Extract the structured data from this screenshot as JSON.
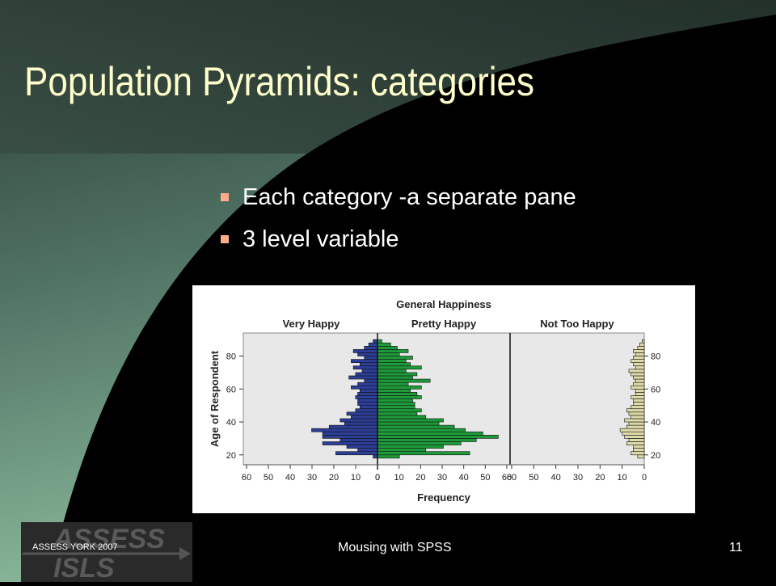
{
  "slide": {
    "title": "Population Pyramids: categories",
    "bullets": [
      "Each category -a separate pane",
      "3 level variable"
    ],
    "footer_left": "ASSESS YORK 2007",
    "footer_center": "Mousing with SPSS",
    "page_number": "11",
    "logo_text": [
      "ASSESS",
      "ISLS"
    ]
  },
  "colors": {
    "title": "#ffffcc",
    "bullet": "#ffaa88",
    "very_happy": "#2c3e96",
    "pretty_happy": "#1f9a3a",
    "not_too_happy": "#ded9a8",
    "pane_bg": "#e8e8e8"
  },
  "chart_data": {
    "type": "bar",
    "orientation": "horizontal",
    "title": "General Happiness",
    "xlabel": "Frequency",
    "ylabel": "Age of Respondent",
    "panes": [
      "Very Happy",
      "Pretty Happy",
      "Not Too Happy"
    ],
    "pane_x_ticks": [
      [
        "60",
        "50",
        "40",
        "30",
        "20",
        "10",
        "0"
      ],
      [
        "0",
        "10",
        "20",
        "30",
        "40",
        "50",
        "60"
      ],
      [
        "60",
        "50",
        "40",
        "30",
        "20",
        "10",
        "0"
      ]
    ],
    "y_ticks": [
      "20",
      "40",
      "60",
      "80"
    ],
    "ylim": [
      14,
      94
    ],
    "xlim": [
      0,
      60
    ],
    "bin_width": 2,
    "series": [
      {
        "name": "Very Happy",
        "ages": [
          19,
          21,
          23,
          25,
          27,
          29,
          31,
          33,
          35,
          37,
          39,
          41,
          43,
          45,
          47,
          49,
          51,
          53,
          55,
          57,
          59,
          61,
          63,
          65,
          67,
          69,
          71,
          73,
          75,
          77,
          79,
          81,
          83,
          85,
          87,
          89
        ],
        "values": [
          2,
          19,
          9,
          14,
          25,
          17,
          25,
          25,
          30,
          22,
          15,
          17,
          12,
          14,
          10,
          8,
          9,
          9,
          10,
          9,
          8,
          12,
          9,
          6,
          13,
          10,
          7,
          11,
          8,
          12,
          6,
          9,
          11,
          6,
          4,
          2
        ]
      },
      {
        "name": "Pretty Happy",
        "ages": [
          19,
          21,
          23,
          25,
          27,
          29,
          31,
          33,
          35,
          37,
          39,
          41,
          43,
          45,
          47,
          49,
          51,
          53,
          55,
          57,
          59,
          61,
          63,
          65,
          67,
          69,
          71,
          73,
          75,
          77,
          79,
          81,
          83,
          85,
          87,
          89
        ],
        "values": [
          10,
          42,
          22,
          30,
          38,
          45,
          55,
          48,
          40,
          35,
          28,
          30,
          22,
          18,
          20,
          17,
          17,
          16,
          20,
          18,
          15,
          20,
          14,
          24,
          16,
          18,
          13,
          20,
          15,
          13,
          16,
          10,
          14,
          9,
          6,
          2
        ]
      },
      {
        "name": "Not Too Happy",
        "ages": [
          19,
          21,
          23,
          25,
          27,
          29,
          31,
          33,
          35,
          37,
          39,
          41,
          43,
          45,
          47,
          49,
          51,
          53,
          55,
          57,
          59,
          61,
          63,
          65,
          67,
          69,
          71,
          73,
          75,
          77,
          79,
          81,
          83,
          85,
          87,
          89
        ],
        "values": [
          3,
          6,
          5,
          5,
          8,
          7,
          9,
          10,
          11,
          8,
          7,
          9,
          6,
          7,
          8,
          6,
          5,
          5,
          6,
          4,
          4,
          6,
          5,
          4,
          5,
          6,
          7,
          4,
          5,
          6,
          5,
          4,
          5,
          3,
          2,
          1
        ]
      }
    ]
  }
}
